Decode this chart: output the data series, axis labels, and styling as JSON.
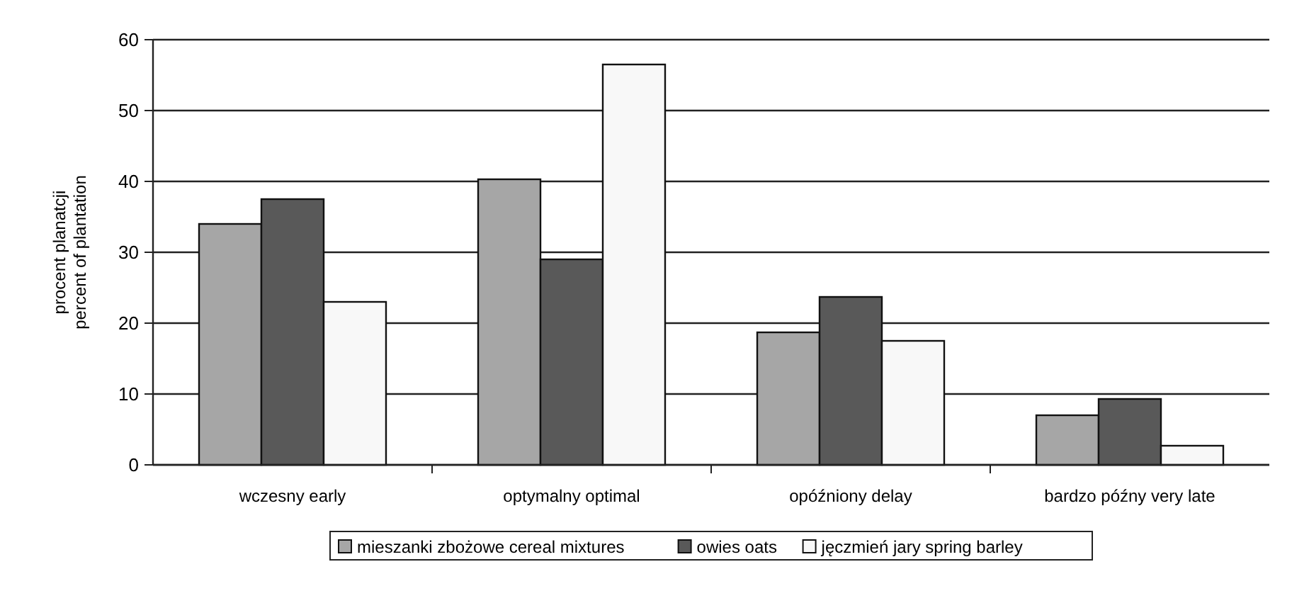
{
  "chart_data": {
    "type": "bar",
    "ylabel": "procent planatcji\npercent of plantation",
    "categories": [
      "wczesny early",
      "optymalny optimal",
      "opóźniony delay",
      "bardzo późny very late"
    ],
    "series": [
      {
        "name": "mieszanki zbożowe cereal mixtures",
        "color": "#a6a6a6",
        "values": [
          34,
          40.3,
          18.7,
          7
        ]
      },
      {
        "name": "owies oats",
        "color": "#595959",
        "values": [
          37.5,
          29,
          23.7,
          9.3
        ]
      },
      {
        "name": "jęczmień jary spring barley",
        "color": "#f8f8f8",
        "values": [
          23,
          56.5,
          17.5,
          2.7
        ]
      }
    ],
    "ylim": [
      0,
      60
    ],
    "yticks": [
      0,
      10,
      20,
      30,
      40,
      50,
      60
    ],
    "grid": "y",
    "legend": "bottom"
  }
}
